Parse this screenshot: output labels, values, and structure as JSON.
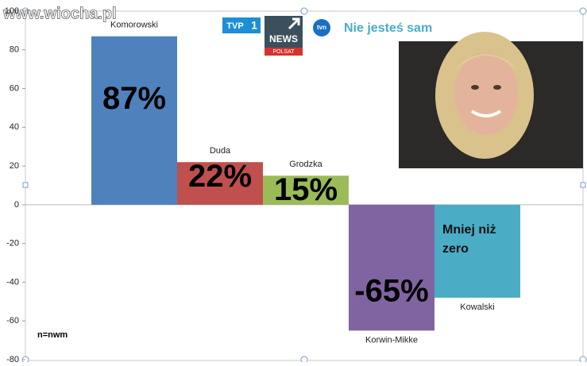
{
  "chart_data": {
    "type": "bar",
    "categories": [
      "Komorowski",
      "Duda",
      "Grodzka",
      "Korwin-Mikke",
      "Kowalski"
    ],
    "values": [
      87,
      22,
      15,
      -65,
      -48
    ],
    "value_labels": [
      "87%",
      "22%",
      "15%",
      "-65%",
      null
    ],
    "colors": [
      "#4f81bd",
      "#c0504d",
      "#9bbb59",
      "#8064a2",
      "#4bacc6"
    ],
    "ylim": [
      -80,
      100
    ],
    "yticks": [
      -80,
      -60,
      -40,
      -20,
      0,
      20,
      40,
      60,
      80,
      100
    ],
    "grid": false,
    "annotation": "Mniej niż zero",
    "note": "n=nwm",
    "watermark": "www.wiocha.pl",
    "logos": {
      "tvp": "TVP",
      "tvp_number": "1",
      "news": "NEWS",
      "polsat": "POLSAT",
      "tvn": "tvn"
    },
    "headline": "Nie jesteś sam"
  }
}
